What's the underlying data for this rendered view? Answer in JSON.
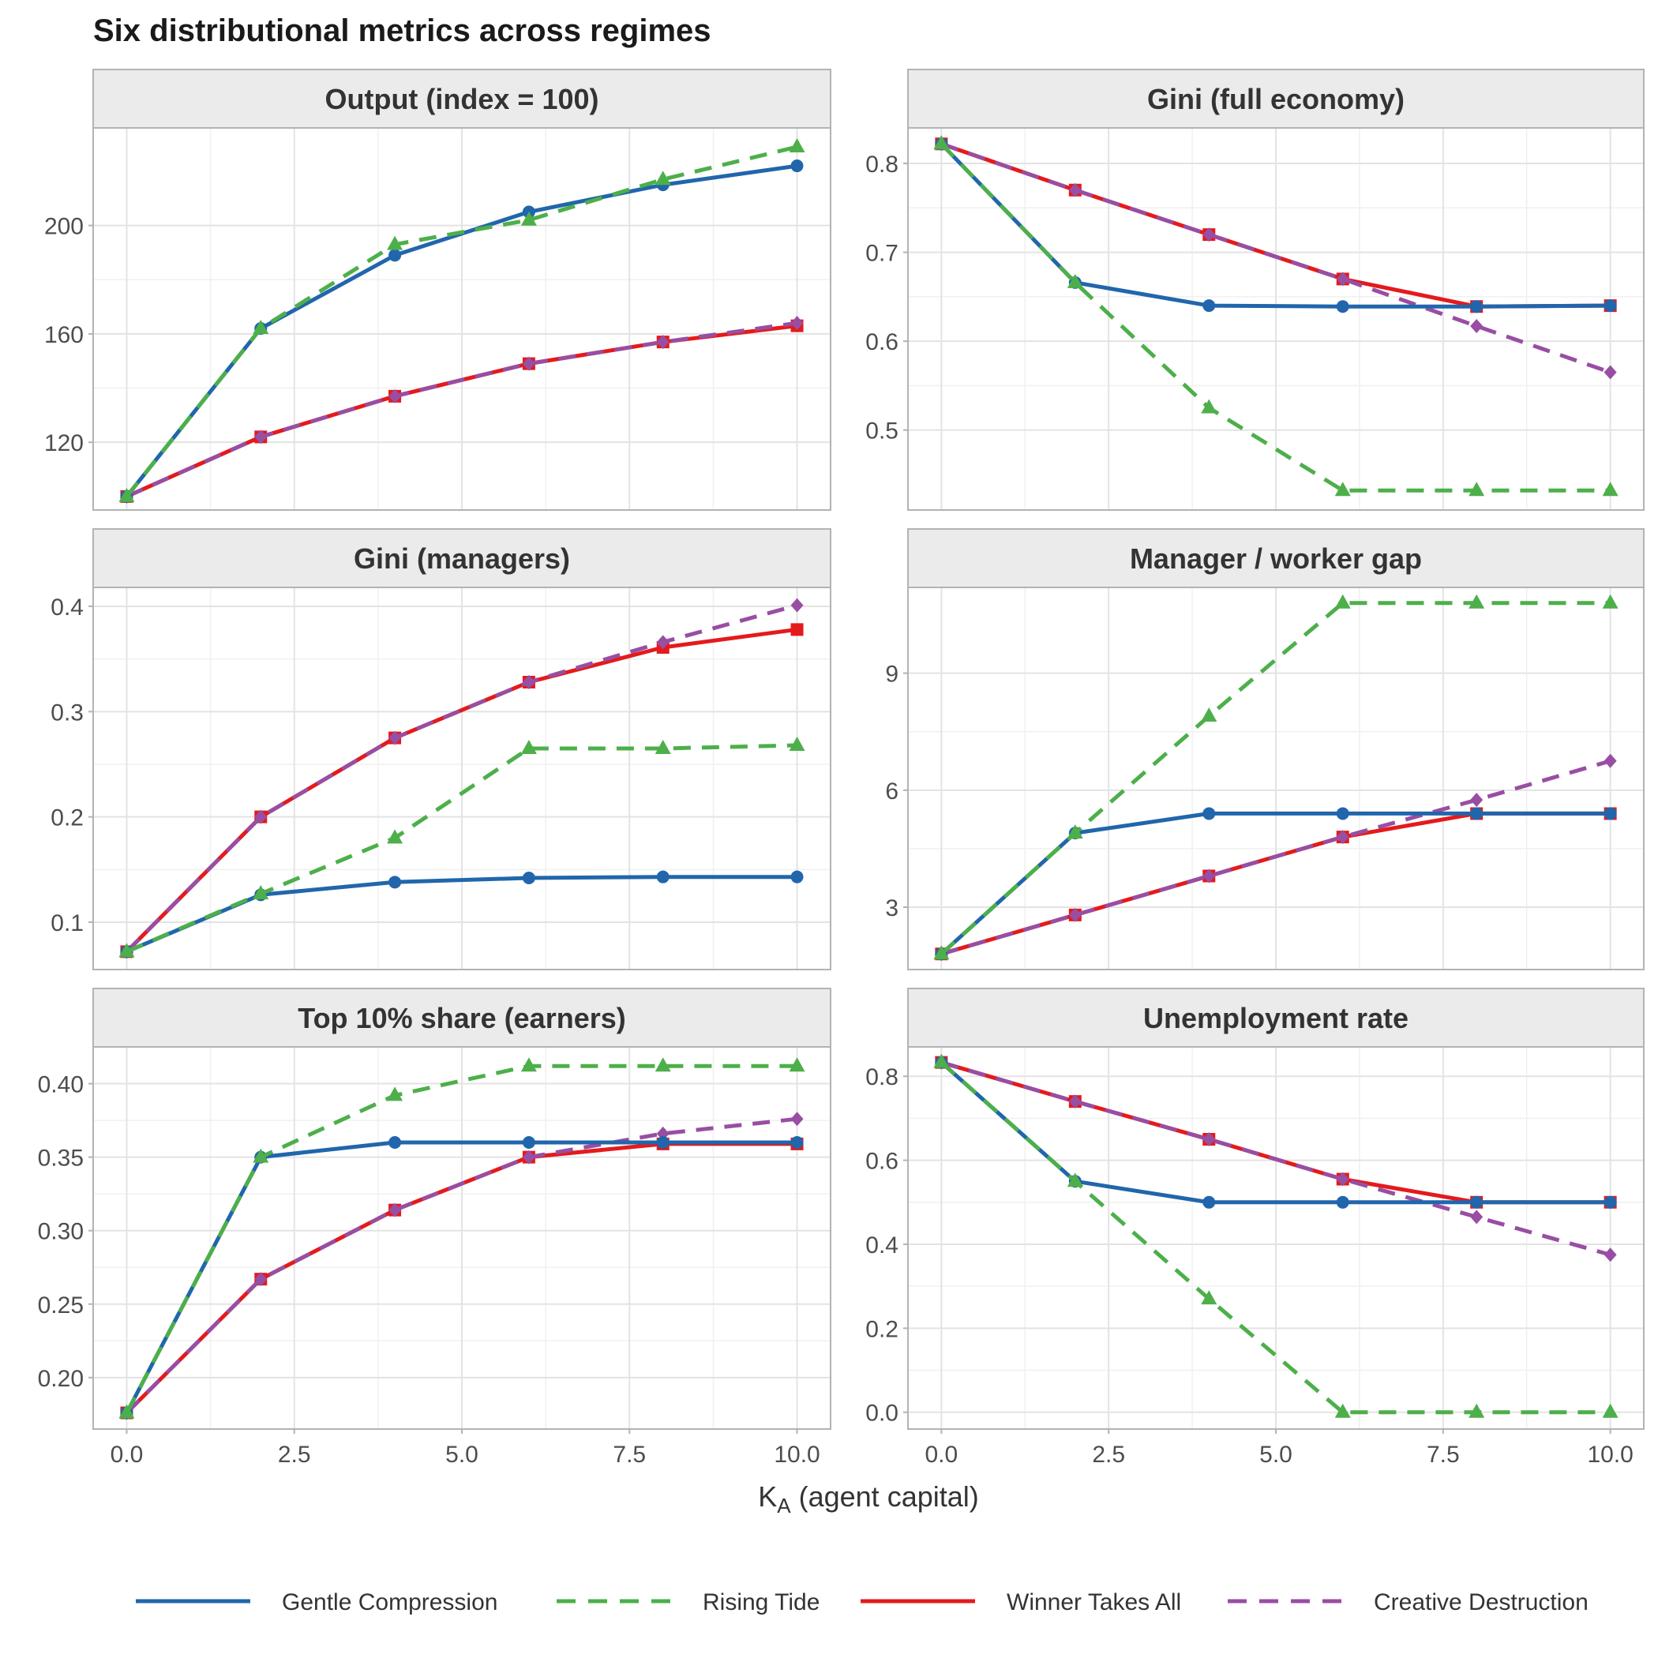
{
  "title": "Six distributional metrics across regimes",
  "xlabel_main": "K",
  "xlabel_sub": "A",
  "xlabel_rest": " (agent capital)",
  "colors": {
    "gentle": "#2166AC",
    "rising": "#4DAF4A",
    "winner": "#E41A1C",
    "creative": "#984EA3"
  },
  "legend": [
    {
      "key": "gentle",
      "label": "Gentle Compression",
      "dashed": false
    },
    {
      "key": "rising",
      "label": "Rising Tide",
      "dashed": true
    },
    {
      "key": "winner",
      "label": "Winner Takes All",
      "dashed": false
    },
    {
      "key": "creative",
      "label": "Creative Destruction",
      "dashed": true
    }
  ],
  "chart_data": [
    {
      "type": "line",
      "title": "Output (index = 100)",
      "xlim": [
        -0.5,
        10.5
      ],
      "ylim": [
        95,
        236
      ],
      "xticks": [
        0,
        2.5,
        5,
        7.5,
        10
      ],
      "xtick_labels": [
        "0.0",
        "2.5",
        "5.0",
        "7.5",
        "10.0"
      ],
      "yticks": [
        120,
        160,
        200
      ],
      "ytick_labels": [
        "120",
        "160",
        "200"
      ],
      "x": [
        0,
        2,
        4,
        6,
        8,
        10
      ],
      "series": [
        {
          "name": "Gentle Compression",
          "values": [
            100,
            162,
            189,
            205,
            215,
            222
          ]
        },
        {
          "name": "Rising Tide",
          "values": [
            100,
            162,
            193,
            202,
            217,
            229
          ]
        },
        {
          "name": "Winner Takes All",
          "values": [
            100,
            122,
            137,
            149,
            157,
            163
          ]
        },
        {
          "name": "Creative Destruction",
          "values": [
            100,
            122,
            137,
            149,
            157,
            164
          ]
        }
      ]
    },
    {
      "type": "line",
      "title": "Gini (full economy)",
      "xlim": [
        -0.5,
        10.5
      ],
      "ylim": [
        0.41,
        0.84
      ],
      "xticks": [
        0,
        2.5,
        5,
        7.5,
        10
      ],
      "xtick_labels": [
        "0.0",
        "2.5",
        "5.0",
        "7.5",
        "10.0"
      ],
      "yticks": [
        0.5,
        0.6,
        0.7,
        0.8
      ],
      "ytick_labels": [
        "0.5",
        "0.6",
        "0.7",
        "0.8"
      ],
      "x": [
        0,
        2,
        4,
        6,
        8,
        10
      ],
      "series": [
        {
          "name": "Gentle Compression",
          "values": [
            0.822,
            0.666,
            0.64,
            0.639,
            0.639,
            0.64
          ]
        },
        {
          "name": "Rising Tide",
          "values": [
            0.822,
            0.666,
            0.525,
            0.432,
            0.432,
            0.432
          ]
        },
        {
          "name": "Winner Takes All",
          "values": [
            0.822,
            0.77,
            0.72,
            0.67,
            0.639,
            0.64
          ]
        },
        {
          "name": "Creative Destruction",
          "values": [
            0.822,
            0.77,
            0.72,
            0.67,
            0.617,
            0.565
          ]
        }
      ]
    },
    {
      "type": "line",
      "title": "Gini (managers)",
      "xlim": [
        -0.5,
        10.5
      ],
      "ylim": [
        0.055,
        0.418
      ],
      "xticks": [
        0,
        2.5,
        5,
        7.5,
        10
      ],
      "xtick_labels": [
        "0.0",
        "2.5",
        "5.0",
        "7.5",
        "10.0"
      ],
      "yticks": [
        0.1,
        0.2,
        0.3,
        0.4
      ],
      "ytick_labels": [
        "0.1",
        "0.2",
        "0.3",
        "0.4"
      ],
      "x": [
        0,
        2,
        4,
        6,
        8,
        10
      ],
      "series": [
        {
          "name": "Gentle Compression",
          "values": [
            0.072,
            0.126,
            0.138,
            0.142,
            0.143,
            0.143
          ]
        },
        {
          "name": "Rising Tide",
          "values": [
            0.072,
            0.127,
            0.18,
            0.265,
            0.265,
            0.268
          ]
        },
        {
          "name": "Winner Takes All",
          "values": [
            0.072,
            0.2,
            0.275,
            0.328,
            0.361,
            0.378
          ]
        },
        {
          "name": "Creative Destruction",
          "values": [
            0.072,
            0.2,
            0.275,
            0.328,
            0.366,
            0.401
          ]
        }
      ]
    },
    {
      "type": "line",
      "title": "Manager / worker gap",
      "xlim": [
        -0.5,
        10.5
      ],
      "ylim": [
        1.4,
        11.2
      ],
      "xticks": [
        0,
        2.5,
        5,
        7.5,
        10
      ],
      "xtick_labels": [
        "0.0",
        "2.5",
        "5.0",
        "7.5",
        "10.0"
      ],
      "yticks": [
        3,
        6,
        9
      ],
      "ytick_labels": [
        "3",
        "6",
        "9"
      ],
      "x": [
        0,
        2,
        4,
        6,
        8,
        10
      ],
      "series": [
        {
          "name": "Gentle Compression",
          "values": [
            1.8,
            4.9,
            5.4,
            5.4,
            5.4,
            5.4
          ]
        },
        {
          "name": "Rising Tide",
          "values": [
            1.8,
            4.9,
            7.9,
            10.8,
            10.8,
            10.8
          ]
        },
        {
          "name": "Winner Takes All",
          "values": [
            1.8,
            2.8,
            3.8,
            4.8,
            5.4,
            5.4
          ]
        },
        {
          "name": "Creative Destruction",
          "values": [
            1.8,
            2.8,
            3.8,
            4.8,
            5.75,
            6.75
          ]
        }
      ]
    },
    {
      "type": "line",
      "title": "Top 10% share (earners)",
      "xlim": [
        -0.5,
        10.5
      ],
      "ylim": [
        0.165,
        0.425
      ],
      "xticks": [
        0,
        2.5,
        5,
        7.5,
        10
      ],
      "xtick_labels": [
        "0.0",
        "2.5",
        "5.0",
        "7.5",
        "10.0"
      ],
      "yticks": [
        0.2,
        0.25,
        0.3,
        0.35,
        0.4
      ],
      "ytick_labels": [
        "0.20",
        "0.25",
        "0.30",
        "0.35",
        "0.40"
      ],
      "x": [
        0,
        2,
        4,
        6,
        8,
        10
      ],
      "series": [
        {
          "name": "Gentle Compression",
          "values": [
            0.176,
            0.35,
            0.36,
            0.36,
            0.36,
            0.36
          ]
        },
        {
          "name": "Rising Tide",
          "values": [
            0.176,
            0.35,
            0.392,
            0.412,
            0.412,
            0.412
          ]
        },
        {
          "name": "Winner Takes All",
          "values": [
            0.176,
            0.267,
            0.314,
            0.35,
            0.359,
            0.359
          ]
        },
        {
          "name": "Creative Destruction",
          "values": [
            0.176,
            0.267,
            0.314,
            0.35,
            0.366,
            0.376
          ]
        }
      ]
    },
    {
      "type": "line",
      "title": "Unemployment rate",
      "xlim": [
        -0.5,
        10.5
      ],
      "ylim": [
        -0.04,
        0.87
      ],
      "xticks": [
        0,
        2.5,
        5,
        7.5,
        10
      ],
      "xtick_labels": [
        "0.0",
        "2.5",
        "5.0",
        "7.5",
        "10.0"
      ],
      "yticks": [
        0,
        0.2,
        0.4,
        0.6,
        0.8
      ],
      "ytick_labels": [
        "0.0",
        "0.2",
        "0.4",
        "0.6",
        "0.8"
      ],
      "x": [
        0,
        2,
        4,
        6,
        8,
        10
      ],
      "series": [
        {
          "name": "Gentle Compression",
          "values": [
            0.833,
            0.55,
            0.5,
            0.5,
            0.5,
            0.5
          ]
        },
        {
          "name": "Rising Tide",
          "values": [
            0.833,
            0.55,
            0.27,
            0.0,
            0.0,
            0.0
          ]
        },
        {
          "name": "Winner Takes All",
          "values": [
            0.833,
            0.74,
            0.65,
            0.555,
            0.5,
            0.5
          ]
        },
        {
          "name": "Creative Destruction",
          "values": [
            0.833,
            0.74,
            0.65,
            0.555,
            0.465,
            0.375
          ]
        }
      ]
    }
  ]
}
